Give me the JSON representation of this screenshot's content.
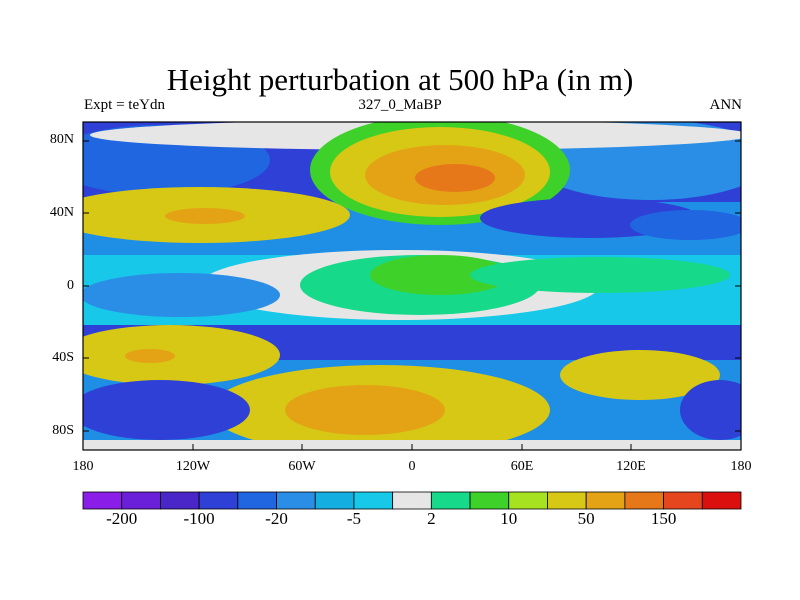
{
  "title": "Height perturbation at 500 hPa (in m)",
  "left_string": "Expt = teYdn",
  "center_string": "327_0_MaBP",
  "right_string": "ANN",
  "lat_ticks": [
    "80N",
    "40N",
    "0",
    "40S",
    "80S"
  ],
  "lon_ticks": [
    "180",
    "120W",
    "60W",
    "0",
    "60E",
    "120E",
    "180"
  ],
  "colorbar": {
    "colors": [
      "#8a1ee8",
      "#6a1fd8",
      "#4a25c8",
      "#2e40d6",
      "#1f66e0",
      "#2a8ee6",
      "#14aee0",
      "#17c8e8",
      "#e6e6e6",
      "#16d98a",
      "#3ed12a",
      "#a6e21f",
      "#d6c814",
      "#e4a314",
      "#e6781a",
      "#e6461e",
      "#dc0f0f"
    ],
    "labels": [
      "-200",
      "-100",
      "-20",
      "-5",
      "2",
      "10",
      "50",
      "150"
    ]
  }
}
